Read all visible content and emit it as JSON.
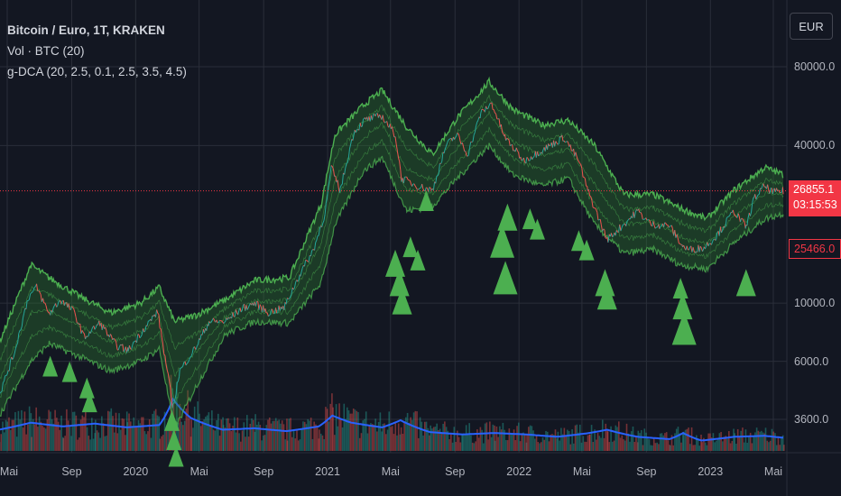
{
  "header": {
    "title": "Bitcoin / Euro, 1T, KRAKEN",
    "indicator_volume": "Vol · BTC (20)",
    "indicator_gdca": "g-DCA (20, 2.5, 0.1, 2.5, 3.5, 4.5)",
    "currency_button": "EUR"
  },
  "price_scale": {
    "current_price": "26855.1",
    "countdown": "03:15:53",
    "low_price": "25466.0"
  },
  "colors": {
    "background": "#131722",
    "band_line": "#4caf50",
    "band_fill": "#2e7d32",
    "signal_triangle": "#4caf50",
    "price_line_up": "#26a69a",
    "price_line_down": "#ef5350",
    "volume_ma": "#2962ff",
    "current_price": "#f23645"
  },
  "chart_data": {
    "type": "line",
    "title": "Bitcoin / Euro, 1T, KRAKEN",
    "y_scale": "log",
    "ylim": [
      2600,
      120000
    ],
    "grid": true,
    "y_ticks": [
      {
        "value": 80000,
        "label": "80000.0"
      },
      {
        "value": 40000,
        "label": "40000.0"
      },
      {
        "value": 10000,
        "label": "10000.0"
      },
      {
        "value": 6000,
        "label": "6000.0"
      },
      {
        "value": 3600,
        "label": "3600.0"
      }
    ],
    "x_ticks": [
      {
        "date": "2019-05-01",
        "label": "Mai"
      },
      {
        "date": "2019-09-01",
        "label": "Sep"
      },
      {
        "date": "2020-01-01",
        "label": "2020"
      },
      {
        "date": "2020-05-01",
        "label": "Mai"
      },
      {
        "date": "2020-09-01",
        "label": "Sep"
      },
      {
        "date": "2021-01-01",
        "label": "2021"
      },
      {
        "date": "2021-05-01",
        "label": "Mai"
      },
      {
        "date": "2021-09-01",
        "label": "Sep"
      },
      {
        "date": "2022-01-01",
        "label": "2022"
      },
      {
        "date": "2022-05-01",
        "label": "Mai"
      },
      {
        "date": "2022-09-01",
        "label": "Sep"
      },
      {
        "date": "2023-01-01",
        "label": "2023"
      },
      {
        "date": "2023-05-01",
        "label": "Mai"
      }
    ],
    "price_series": {
      "x": [
        "2019-04-15",
        "2019-05-15",
        "2019-06-10",
        "2019-06-26",
        "2019-07-20",
        "2019-08-10",
        "2019-09-05",
        "2019-09-25",
        "2019-10-25",
        "2019-11-25",
        "2019-12-18",
        "2020-01-15",
        "2020-02-12",
        "2020-03-12",
        "2020-03-25",
        "2020-04-25",
        "2020-05-20",
        "2020-06-20",
        "2020-07-20",
        "2020-08-15",
        "2020-09-10",
        "2020-10-10",
        "2020-11-10",
        "2020-12-05",
        "2020-12-27",
        "2021-01-08",
        "2021-01-25",
        "2021-02-20",
        "2021-03-13",
        "2021-04-14",
        "2021-05-10",
        "2021-05-22",
        "2021-06-22",
        "2021-07-20",
        "2021-08-15",
        "2021-09-05",
        "2021-09-25",
        "2021-10-20",
        "2021-11-10",
        "2021-12-05",
        "2022-01-10",
        "2022-02-10",
        "2022-03-28",
        "2022-04-25",
        "2022-05-12",
        "2022-06-18",
        "2022-07-20",
        "2022-08-15",
        "2022-09-10",
        "2022-10-15",
        "2022-11-09",
        "2022-11-21",
        "2022-12-20",
        "2023-01-12",
        "2023-02-15",
        "2023-03-10",
        "2023-03-25",
        "2023-04-14",
        "2023-05-01",
        "2023-05-20"
      ],
      "values": [
        4400,
        6500,
        10500,
        11500,
        9100,
        10300,
        9300,
        7400,
        8400,
        6900,
        6600,
        7900,
        9300,
        4000,
        5500,
        6800,
        8500,
        8500,
        9500,
        10000,
        9200,
        9600,
        13000,
        16000,
        22000,
        33000,
        27000,
        45000,
        50000,
        52000,
        44000,
        30000,
        28000,
        27000,
        40000,
        44000,
        37000,
        53000,
        58000,
        43000,
        35000,
        38000,
        43000,
        35000,
        27000,
        17500,
        20000,
        22500,
        20000,
        19800,
        16500,
        16000,
        16300,
        18000,
        22500,
        19500,
        25000,
        28000,
        26500,
        26855
      ]
    },
    "upper_band": {
      "x": [
        "2019-04-15",
        "2019-06-15",
        "2019-07-20",
        "2019-09-20",
        "2019-11-15",
        "2020-01-10",
        "2020-02-15",
        "2020-03-15",
        "2020-04-25",
        "2020-06-20",
        "2020-08-15",
        "2020-10-20",
        "2020-12-20",
        "2021-01-15",
        "2021-03-10",
        "2021-04-15",
        "2021-06-01",
        "2021-07-20",
        "2021-09-05",
        "2021-11-05",
        "2021-12-20",
        "2022-02-15",
        "2022-04-05",
        "2022-05-25",
        "2022-07-20",
        "2022-09-15",
        "2022-11-05",
        "2022-12-25",
        "2023-02-15",
        "2023-04-15",
        "2023-05-20"
      ],
      "values": [
        7000,
        14000,
        12500,
        10500,
        9200,
        10000,
        11500,
        8500,
        9000,
        10300,
        12200,
        12500,
        24000,
        44000,
        57000,
        65000,
        47000,
        37000,
        51000,
        70000,
        55000,
        48000,
        50000,
        40000,
        26000,
        26000,
        23000,
        21000,
        27000,
        33000,
        31000
      ]
    },
    "lower_band": {
      "x": [
        "2019-04-15",
        "2019-06-15",
        "2019-07-20",
        "2019-09-20",
        "2019-11-15",
        "2020-01-10",
        "2020-02-15",
        "2020-03-15",
        "2020-04-25",
        "2020-06-20",
        "2020-08-15",
        "2020-10-20",
        "2020-12-20",
        "2021-01-15",
        "2021-03-10",
        "2021-04-15",
        "2021-06-01",
        "2021-07-20",
        "2021-09-05",
        "2021-11-05",
        "2021-12-20",
        "2022-02-15",
        "2022-04-05",
        "2022-05-25",
        "2022-07-20",
        "2022-09-15",
        "2022-11-05",
        "2022-12-25",
        "2023-02-15",
        "2023-04-15",
        "2023-05-20"
      ],
      "values": [
        3700,
        6000,
        7000,
        6200,
        5500,
        6000,
        6700,
        3300,
        4800,
        7600,
        8500,
        8400,
        12000,
        20000,
        32000,
        36000,
        22500,
        23500,
        30000,
        40000,
        31000,
        28000,
        30000,
        20000,
        15500,
        16000,
        14000,
        13500,
        17000,
        21000,
        22000
      ]
    },
    "signals": {
      "x": [
        "2019-07-22",
        "2019-08-28",
        "2019-09-30",
        "2019-10-05",
        "2020-03-10",
        "2020-03-14",
        "2020-03-18",
        "2021-05-10",
        "2021-05-18",
        "2021-05-23",
        "2021-06-08",
        "2021-06-22",
        "2021-07-08",
        "2021-11-30",
        "2021-12-06",
        "2021-12-10",
        "2022-01-22",
        "2022-02-05",
        "2022-04-25",
        "2022-05-10",
        "2022-06-14",
        "2022-06-18",
        "2022-11-05",
        "2022-11-09",
        "2022-11-12",
        "2023-03-10"
      ],
      "values": [
        6300,
        6000,
        5200,
        4600,
        3900,
        3300,
        2850,
        16000,
        13500,
        11500,
        18000,
        16000,
        27000,
        20000,
        14500,
        24000,
        23000,
        21000,
        19000,
        17500,
        13500,
        12000,
        12500,
        11000,
        9300,
        13500
      ],
      "size": [
        1,
        1,
        1,
        1,
        1,
        1,
        1,
        2,
        2,
        2,
        1,
        1,
        1,
        3,
        3,
        2,
        1,
        1,
        1,
        1,
        2,
        2,
        1,
        2,
        3,
        2
      ]
    },
    "volume": {
      "x": [
        "2019-04-15",
        "2019-06-15",
        "2019-08-15",
        "2019-10-15",
        "2019-12-15",
        "2020-02-15",
        "2020-03-12",
        "2020-04-15",
        "2020-06-15",
        "2020-08-15",
        "2020-10-15",
        "2020-12-15",
        "2021-01-10",
        "2021-02-15",
        "2021-04-15",
        "2021-05-20",
        "2021-07-15",
        "2021-09-15",
        "2021-11-15",
        "2022-01-15",
        "2022-03-15",
        "2022-05-15",
        "2022-06-18",
        "2022-08-15",
        "2022-10-15",
        "2022-11-10",
        "2022-12-15",
        "2023-02-15",
        "2023-04-15",
        "2023-05-20"
      ],
      "values": [
        45,
        60,
        52,
        58,
        50,
        55,
        110,
        70,
        45,
        48,
        42,
        52,
        75,
        60,
        50,
        65,
        40,
        35,
        38,
        35,
        30,
        38,
        45,
        30,
        25,
        38,
        22,
        30,
        32,
        28
      ]
    }
  }
}
